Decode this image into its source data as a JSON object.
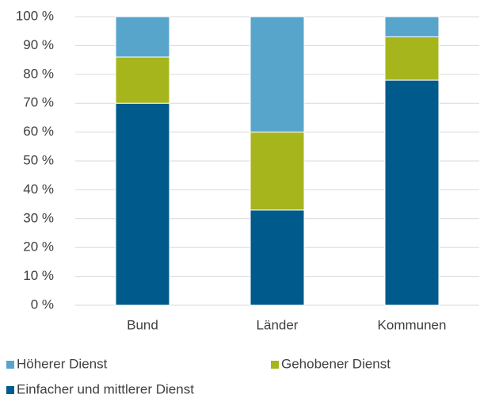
{
  "chart_data": {
    "type": "stacked_bar",
    "categories": [
      "Bund",
      "Länder",
      "Kommunen"
    ],
    "series": [
      {
        "name": "Höherer Dienst",
        "color": "#58a5cc",
        "values": [
          14,
          40,
          7
        ]
      },
      {
        "name": "Gehobener Dienst",
        "color": "#a6b51b",
        "values": [
          16,
          27,
          15
        ]
      },
      {
        "name": "Einfacher und mittlerer Dienst",
        "color": "#005a8c",
        "values": [
          70,
          33,
          78
        ]
      }
    ],
    "ylim": [
      0,
      100
    ],
    "yticks": [
      {
        "value": 0,
        "label": "0 %"
      },
      {
        "value": 10,
        "label": "10 %"
      },
      {
        "value": 20,
        "label": "20 %"
      },
      {
        "value": 30,
        "label": "30 %"
      },
      {
        "value": 40,
        "label": "40 %"
      },
      {
        "value": 50,
        "label": "50 %"
      },
      {
        "value": 60,
        "label": "60 %"
      },
      {
        "value": 70,
        "label": "70 %"
      },
      {
        "value": 80,
        "label": "80 %"
      },
      {
        "value": 90,
        "label": "90 %"
      },
      {
        "value": 100,
        "label": "100 %"
      }
    ],
    "grid": true
  }
}
